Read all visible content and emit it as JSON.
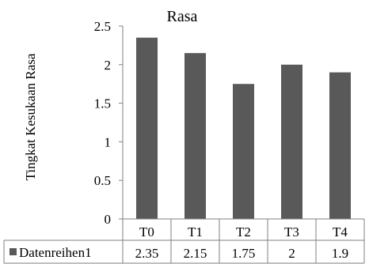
{
  "chart_data": {
    "type": "bar",
    "title": "Rasa",
    "ylabel": "Tingkat Kesukaan Rasa",
    "xlabel": "",
    "categories": [
      "T0",
      "T1",
      "T2",
      "T3",
      "T4"
    ],
    "series": [
      {
        "name": "Datenreihen1",
        "values": [
          2.35,
          2.15,
          1.75,
          2,
          1.9
        ],
        "value_labels": [
          "2.35",
          "2.15",
          "1.75",
          "2",
          "1.9"
        ]
      }
    ],
    "ylim": [
      0,
      2.5
    ],
    "yticks": [
      "0",
      "0.5",
      "1",
      "1.5",
      "2",
      "2.5"
    ],
    "grid": false,
    "legend": "data-table-left",
    "colors": {
      "bar": "#595959",
      "axis": "#808080",
      "text": "#000000"
    }
  }
}
